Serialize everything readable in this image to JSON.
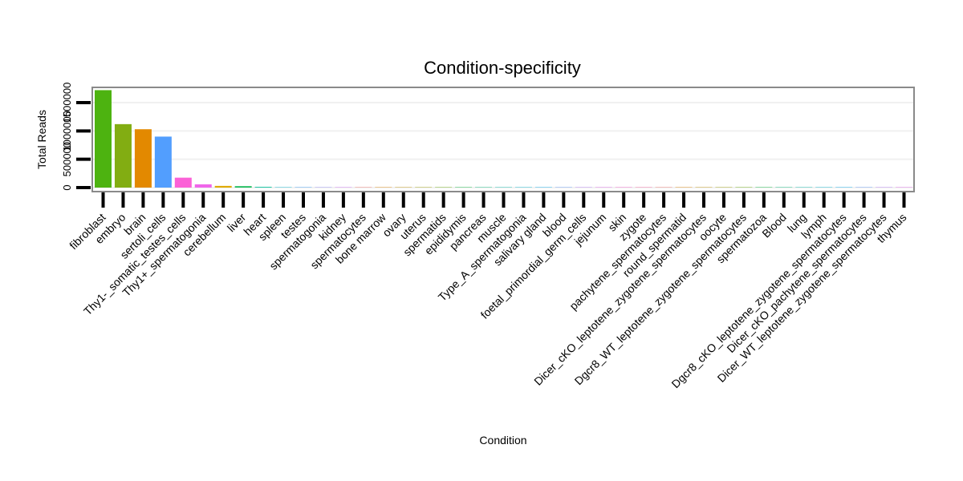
{
  "chart_data": {
    "type": "bar",
    "title": "Condition-specificity",
    "xlabel": "Condition",
    "ylabel": "Total Reads",
    "ylim": [
      0,
      1800000
    ],
    "yticks": [
      {
        "value": 0,
        "label": "0"
      },
      {
        "value": 500000,
        "label": "500000"
      },
      {
        "value": 1000000,
        "label": "1000000"
      },
      {
        "value": 1500000,
        "label": "1500000"
      }
    ],
    "grid": true,
    "legend": "none",
    "categories": [
      "fibroblast",
      "embryo",
      "brain",
      "sertoli_cells",
      "Thy1-_somatic_testes_cells",
      "Thy1+_spermatogonia",
      "cerebellum",
      "liver",
      "heart",
      "spleen",
      "testes",
      "spermatogonia",
      "kidney",
      "spermatocytes",
      "bone marrow",
      "ovary",
      "uterus",
      "spermatids",
      "epididymis",
      "pancreas",
      "muscle",
      "Type_A_spermatogonia",
      "salivary gland",
      "blood",
      "foetal_primordial_germ_cells",
      "jejunum",
      "skin",
      "zygote",
      "pachytene_spermatocytes",
      "round_spermatid",
      "Dicer_cKO_leptotene_zygotene_spermatocytes",
      "oocyte",
      "Dgcr8_WT_leptotene_zygotene_spermatocytes",
      "spermatozoa",
      "Blood",
      "lung",
      "lymph",
      "Dgcr8_cKO_leptotene_zygotene_spermatocytes",
      "Dicer_cKO_pachytene_spermatocytes",
      "Dicer_WT_leptotene_zygotene_spermatocytes",
      "thymus"
    ],
    "values": [
      1720000,
      1120000,
      1030000,
      900000,
      175000,
      58000,
      30000,
      25000,
      12000,
      4000,
      2500,
      1500,
      1000,
      800,
      600,
      500,
      400,
      300,
      250,
      200,
      150,
      120,
      100,
      90,
      80,
      70,
      60,
      50,
      40,
      30,
      25,
      20,
      15,
      12,
      10,
      8,
      6,
      5,
      4,
      3,
      2
    ],
    "colors": [
      "#4db310",
      "#82ad12",
      "#e38900",
      "#529efe",
      "#fb61d7",
      "#f066ea",
      "#e0aa00",
      "#18bb59",
      "#00c19a",
      "#00bcd8",
      "#35a2ff",
      "#9590ff",
      "#d575fe",
      "#f8766d",
      "#e58700",
      "#c99800",
      "#a3a500",
      "#6bb100",
      "#00ba38",
      "#00bf7d",
      "#00c0af",
      "#00bcd8",
      "#00b0f6",
      "#619cff",
      "#b983ff",
      "#e76bf3",
      "#fd61d1",
      "#ff67a4",
      "#f8766d",
      "#e58700",
      "#c99800",
      "#a3a500",
      "#6bb100",
      "#00ba38",
      "#00bf7d",
      "#00c0af",
      "#00bcd8",
      "#00b0f6",
      "#619cff",
      "#b983ff",
      "#e76bf3"
    ]
  }
}
